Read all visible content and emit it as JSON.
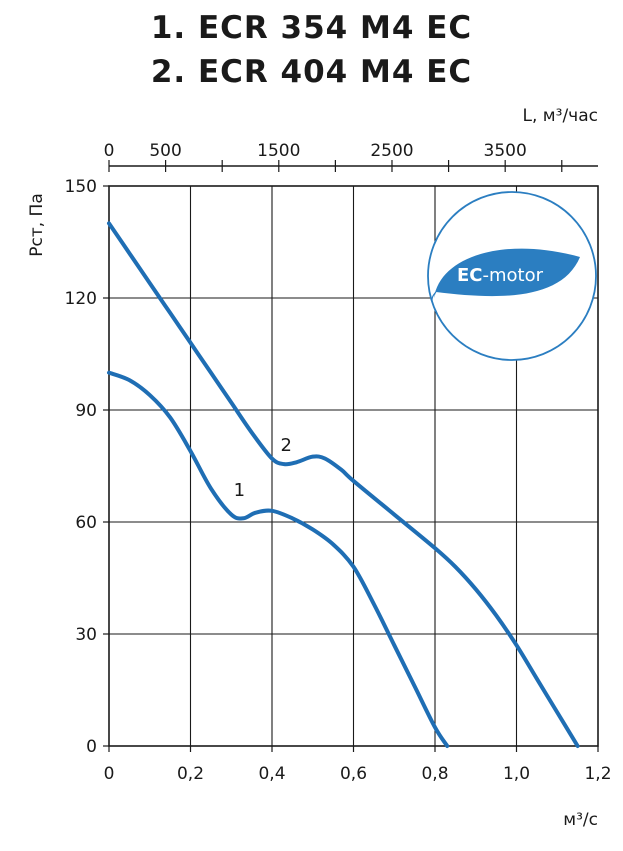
{
  "titles": [
    "1. ECR 354 M4 EC",
    "2. ECR 404 M4 EC"
  ],
  "colors": {
    "curve": "#1f6eb4",
    "grid": "#1a1a1a",
    "badge": "#2b7ec1"
  },
  "badge": {
    "text_bold": "EC",
    "text_rest": "-motor"
  },
  "chart_data": {
    "type": "line",
    "xlabel": "м³/с",
    "ylabel": "Рст, Па",
    "xlim": [
      0,
      1.2
    ],
    "ylim": [
      0,
      150
    ],
    "x_ticks": [
      0,
      0.2,
      0.4,
      0.6,
      0.8,
      1.0,
      1.2
    ],
    "x_tick_labels": [
      "0",
      "0,2",
      "0,4",
      "0,6",
      "0,8",
      "1,0",
      "1,2"
    ],
    "y_ticks": [
      0,
      30,
      60,
      90,
      120,
      150
    ],
    "y_tick_labels": [
      "0",
      "30",
      "60",
      "90",
      "120",
      "150"
    ],
    "top_axis": {
      "label": "L, м³/час",
      "ticks": [
        0,
        500,
        1500,
        2500,
        3500
      ],
      "tick_labels": [
        "0",
        "500",
        "1500",
        "2500",
        "3500"
      ]
    },
    "grid": true,
    "series": [
      {
        "name": "1",
        "label_at": [
          0.32,
          67
        ],
        "x": [
          0,
          0.05,
          0.1,
          0.15,
          0.2,
          0.25,
          0.3,
          0.33,
          0.36,
          0.4,
          0.45,
          0.5,
          0.55,
          0.6,
          0.65,
          0.7,
          0.75,
          0.8,
          0.83
        ],
        "y": [
          100,
          98,
          94,
          88,
          79,
          69,
          62,
          61,
          62.5,
          63,
          61,
          58,
          54,
          48,
          38,
          27,
          16,
          5,
          0
        ]
      },
      {
        "name": "2",
        "label_at": [
          0.435,
          79
        ],
        "x": [
          0,
          0.05,
          0.1,
          0.15,
          0.2,
          0.25,
          0.3,
          0.35,
          0.4,
          0.43,
          0.46,
          0.5,
          0.53,
          0.57,
          0.6,
          0.7,
          0.8,
          0.85,
          0.9,
          0.95,
          1.0,
          1.05,
          1.1,
          1.15
        ],
        "y": [
          140,
          132,
          124,
          116,
          108,
          100,
          92,
          84,
          77,
          75.5,
          76,
          77.5,
          77,
          74,
          71,
          62,
          53,
          48,
          42,
          35,
          27,
          18,
          9,
          0
        ]
      }
    ]
  }
}
